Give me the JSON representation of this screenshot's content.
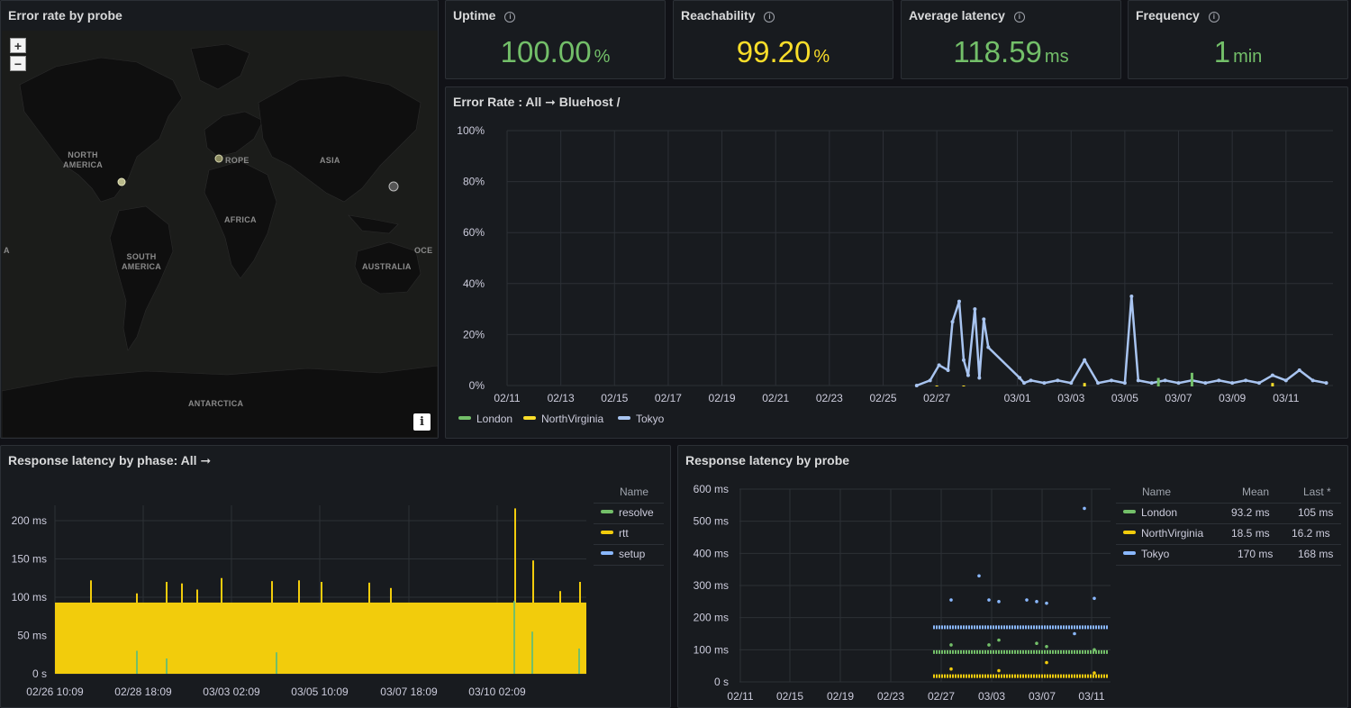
{
  "map_panel": {
    "title": "Error rate by probe",
    "zoom_in": "+",
    "zoom_out": "−",
    "info": "i",
    "labels": {
      "north_america": "NORTH\nAMERICA",
      "europe": "ROPE",
      "asia": "ASIA",
      "africa": "AFRICA",
      "south_america": "SOUTH\nAMERICA",
      "australia": "AUSTRALIA",
      "antarctica": "ANTARCTICA",
      "ocean_right": "OCE",
      "ocean_left": "A"
    }
  },
  "stats": [
    {
      "title": "Uptime",
      "value": "100.00",
      "unit": "%",
      "color": "#73bf69"
    },
    {
      "title": "Reachability",
      "value": "99.20",
      "unit": "%",
      "color": "#fade2a"
    },
    {
      "title": "Average latency",
      "value": "118.59",
      "unit": "ms",
      "color": "#73bf69"
    },
    {
      "title": "Frequency",
      "value": "1",
      "unit": "min",
      "color": "#73bf69"
    }
  ],
  "info_glyph": "i",
  "error_rate_panel": {
    "title": "Error Rate : All ➞ Bluehost /"
  },
  "phase_panel": {
    "title": "Response latency by phase: All ➞",
    "legend_header": "Name",
    "legend": [
      {
        "name": "resolve",
        "color": "#73bf69"
      },
      {
        "name": "rtt",
        "color": "#f2cc0c"
      },
      {
        "name": "setup",
        "color": "#8ab8ff"
      }
    ]
  },
  "probe_panel": {
    "title": "Response latency by probe",
    "headers": {
      "name": "Name",
      "mean": "Mean",
      "last": "Last *"
    },
    "rows": [
      {
        "name": "London",
        "mean": "93.2 ms",
        "last": "105 ms",
        "color": "#73bf69"
      },
      {
        "name": "NorthVirginia",
        "mean": "18.5 ms",
        "last": "16.2 ms",
        "color": "#f2cc0c"
      },
      {
        "name": "Tokyo",
        "mean": "170 ms",
        "last": "168 ms",
        "color": "#8ab8ff"
      }
    ]
  },
  "chart_data": [
    {
      "type": "line",
      "title": "Error Rate : All ➞ Bluehost /",
      "x_ticks": [
        "02/11",
        "02/13",
        "02/15",
        "02/17",
        "02/19",
        "02/21",
        "02/23",
        "02/25",
        "02/27",
        "03/01",
        "03/03",
        "03/05",
        "03/07",
        "03/09",
        "03/11"
      ],
      "y_ticks": [
        "0%",
        "20%",
        "40%",
        "60%",
        "80%",
        "100%"
      ],
      "ylim": [
        0,
        100
      ],
      "legend": [
        {
          "name": "London",
          "color": "#73bf69"
        },
        {
          "name": "NorthVirginia",
          "color": "#fade2a"
        },
        {
          "name": "Tokyo",
          "color": "#a8c4f0"
        }
      ],
      "series": [
        {
          "name": "Tokyo",
          "color": "#a8c4f0",
          "x": [
            "02/26 06:00",
            "02/26 18:00",
            "02/27 02:00",
            "02/27 10:00",
            "02/27 14:00",
            "02/27 20:00",
            "02/28 00:00",
            "02/28 04:00",
            "02/28 10:00",
            "02/28 14:00",
            "02/28 18:00",
            "02/28 22:00",
            "03/01 02:00",
            "03/01 06:00",
            "03/01 12:00",
            "03/02 00:00",
            "03/02 12:00",
            "03/03 00:00",
            "03/03 12:00",
            "03/04 00:00",
            "03/04 12:00",
            "03/05 00:00",
            "03/05 06:00",
            "03/05 12:00",
            "03/06 00:00",
            "03/06 12:00",
            "03/07 00:00",
            "03/07 12:00",
            "03/08 00:00",
            "03/08 12:00",
            "03/09 00:00",
            "03/09 12:00",
            "03/10 00:00",
            "03/10 12:00",
            "03/11 00:00",
            "03/11 12:00",
            "03/12 00:00",
            "03/12 12:00"
          ],
          "y": [
            0,
            2,
            8,
            6,
            25,
            33,
            10,
            4,
            30,
            3,
            26,
            15,
            3,
            1,
            2,
            1,
            2,
            1,
            10,
            1,
            2,
            1,
            35,
            2,
            1,
            2,
            1,
            2,
            1,
            2,
            1,
            2,
            1,
            4,
            2,
            6,
            2,
            1
          ]
        },
        {
          "name": "London",
          "color": "#73bf69",
          "x": [
            "03/06 06:00",
            "03/07 12:00"
          ],
          "y": [
            3,
            5
          ]
        },
        {
          "name": "NorthVirginia",
          "color": "#fade2a",
          "x": [
            "02/27 00:00",
            "02/28 00:00",
            "03/03 12:00",
            "03/10 12:00"
          ],
          "y": [
            0,
            0,
            1,
            1
          ]
        }
      ]
    },
    {
      "type": "bar",
      "title": "Response latency by phase: All ➞",
      "x_ticks": [
        "02/26 10:09",
        "02/28 18:09",
        "03/03 02:09",
        "03/05 10:09",
        "03/07 18:09",
        "03/10 02:09"
      ],
      "y_ticks": [
        "0 s",
        "50 ms",
        "100 ms",
        "150 ms",
        "200 ms"
      ],
      "ylim": [
        0,
        220
      ],
      "series": [
        {
          "name": "rtt",
          "color": "#f2cc0c",
          "typical": 93,
          "spikes": [
            122,
            105,
            120,
            118,
            110,
            125,
            121,
            122,
            120,
            119,
            112,
            216,
            148,
            108,
            120
          ]
        },
        {
          "name": "resolve",
          "color": "#73bf69",
          "spikes": [
            30,
            20,
            28,
            95,
            55,
            33
          ]
        }
      ]
    },
    {
      "type": "scatter",
      "title": "Response latency by probe",
      "x_ticks": [
        "02/11",
        "02/15",
        "02/19",
        "02/23",
        "02/27",
        "03/03",
        "03/07",
        "03/11"
      ],
      "y_ticks": [
        "0 s",
        "100 ms",
        "200 ms",
        "300 ms",
        "400 ms",
        "500 ms",
        "600 ms"
      ],
      "ylim": [
        0,
        600
      ],
      "series": [
        {
          "name": "London",
          "color": "#73bf69",
          "typical": 93,
          "outliers": [
            115,
            130,
            110,
            100,
            115,
            120
          ]
        },
        {
          "name": "NorthVirginia",
          "color": "#f2cc0c",
          "typical": 18,
          "outliers": [
            40,
            35,
            60,
            28
          ]
        },
        {
          "name": "Tokyo",
          "color": "#8ab8ff",
          "typical": 170,
          "outliers": [
            255,
            250,
            245,
            260,
            255,
            250,
            540,
            330,
            255,
            150
          ]
        }
      ]
    }
  ]
}
